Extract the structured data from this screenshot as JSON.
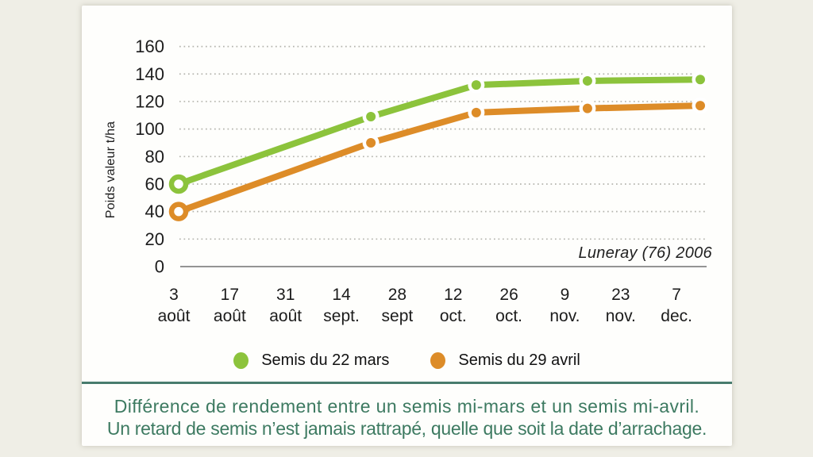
{
  "chart_data": {
    "type": "line",
    "y_axis_title": "Poids valeur t/ha",
    "annotation": "Luneray (76) 2006",
    "ylim": [
      0,
      160
    ],
    "y_ticks": [
      0,
      20,
      40,
      60,
      80,
      100,
      120,
      140,
      160
    ],
    "grid": "horizontal dotted lines at each y tick, solid baseline at 0",
    "legend_position": "bottom center",
    "x_tick_labels": [
      {
        "day": "3",
        "month": "août"
      },
      {
        "day": "17",
        "month": "août"
      },
      {
        "day": "31",
        "month": "août"
      },
      {
        "day": "14",
        "month": "sept."
      },
      {
        "day": "28",
        "month": "sept"
      },
      {
        "day": "12",
        "month": "oct."
      },
      {
        "day": "26",
        "month": "oct."
      },
      {
        "day": "9",
        "month": "nov."
      },
      {
        "day": "23",
        "month": "nov."
      },
      {
        "day": "7",
        "month": "dec."
      }
    ],
    "series": [
      {
        "name": "Semis du 22 mars",
        "color": "#8cc33c",
        "first_marker": "hollow",
        "points": [
          {
            "x_frac": 0.003,
            "value": 60
          },
          {
            "x_frac": 0.366,
            "value": 109
          },
          {
            "x_frac": 0.565,
            "value": 132
          },
          {
            "x_frac": 0.775,
            "value": 135
          },
          {
            "x_frac": 0.988,
            "value": 136
          }
        ]
      },
      {
        "name": "Semis du 29 avril",
        "color": "#dd8c28",
        "first_marker": "hollow",
        "points": [
          {
            "x_frac": 0.003,
            "value": 40
          },
          {
            "x_frac": 0.366,
            "value": 90
          },
          {
            "x_frac": 0.565,
            "value": 112
          },
          {
            "x_frac": 0.775,
            "value": 115
          },
          {
            "x_frac": 0.988,
            "value": 117
          }
        ]
      }
    ]
  },
  "caption": {
    "line1": "Différence de rendement entre un semis mi-mars et un semis mi-avril.",
    "line2": "Un retard de semis n’est jamais rattrapé, quelle que soit la date d’arrachage.",
    "color": "#3d7a61"
  },
  "colors": {
    "page_background": "#efeee6",
    "panel_background": "#fefefc",
    "gridline": "#b5b5ae",
    "axis_line": "#949494",
    "tick_text": "#1c1c1c",
    "separator": "#487c6e",
    "series_green": "#8cc33c",
    "series_orange": "#dd8c28"
  }
}
